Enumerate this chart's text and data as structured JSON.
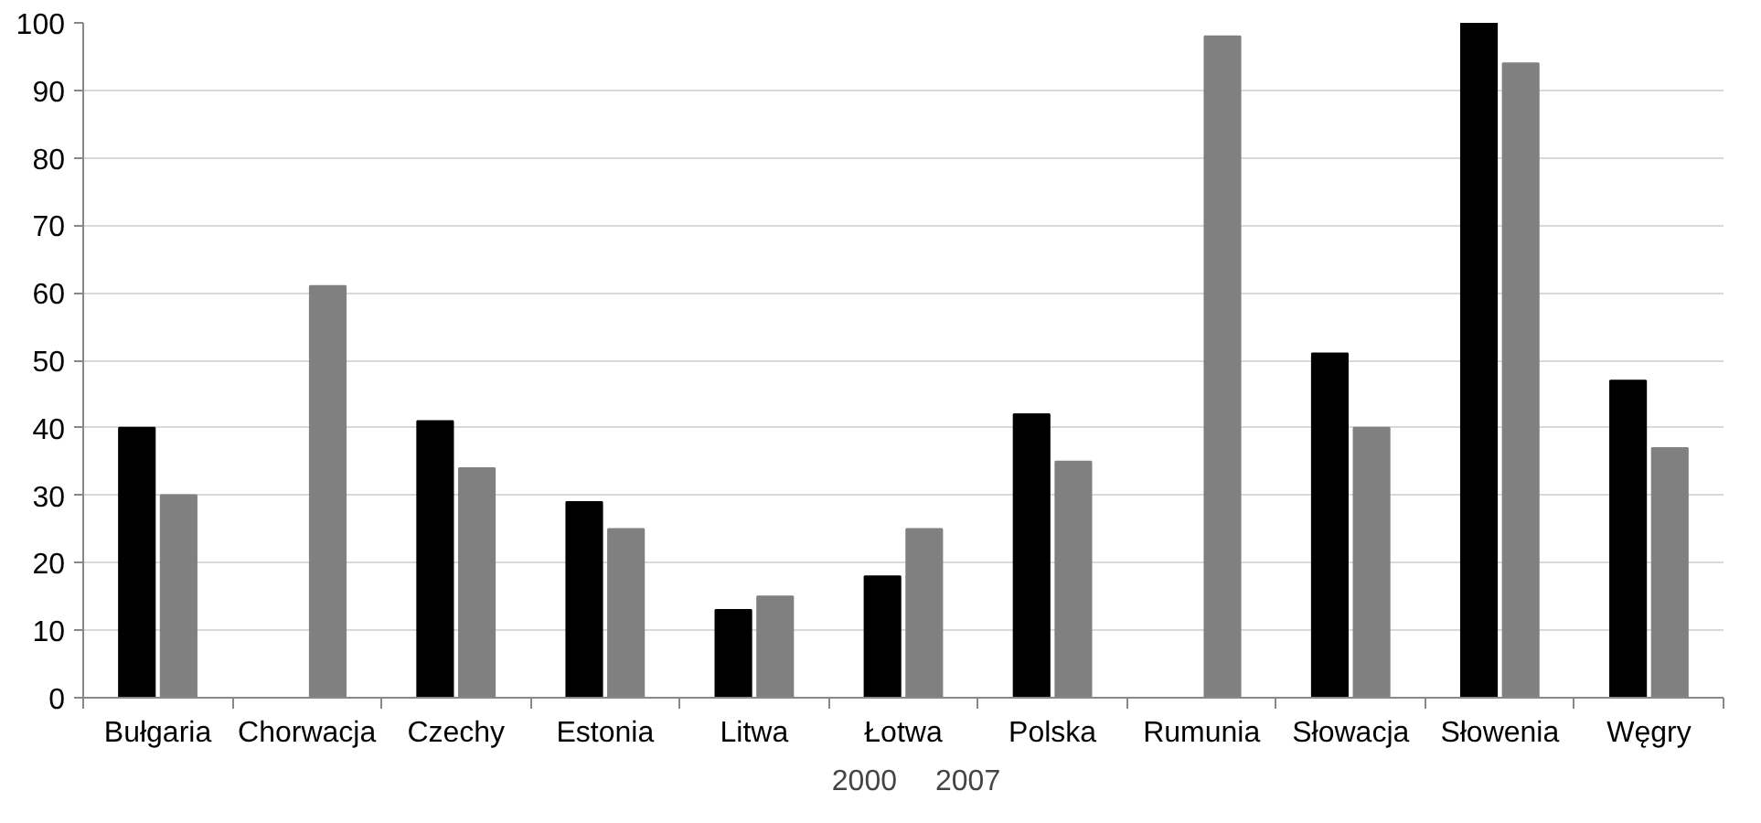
{
  "chart_data": {
    "type": "bar",
    "categories": [
      "Bułgaria",
      "Chorwacja",
      "Czechy",
      "Estonia",
      "Litwa",
      "Łotwa",
      "Polska",
      "Rumunia",
      "Słowacja",
      "Słowenia",
      "Węgry"
    ],
    "series": [
      {
        "name": "2000",
        "color": "#000000",
        "values": [
          40,
          null,
          41,
          29,
          13,
          18,
          42,
          null,
          51,
          100,
          47
        ]
      },
      {
        "name": "2007",
        "color": "#808080",
        "values": [
          30,
          61,
          34,
          25,
          15,
          25,
          35,
          98,
          40,
          94,
          37
        ]
      }
    ],
    "ylim": [
      0,
      100
    ],
    "yticks": [
      0,
      10,
      20,
      30,
      40,
      50,
      60,
      70,
      80,
      90,
      100
    ],
    "grid": "y",
    "legend": "bottom"
  }
}
